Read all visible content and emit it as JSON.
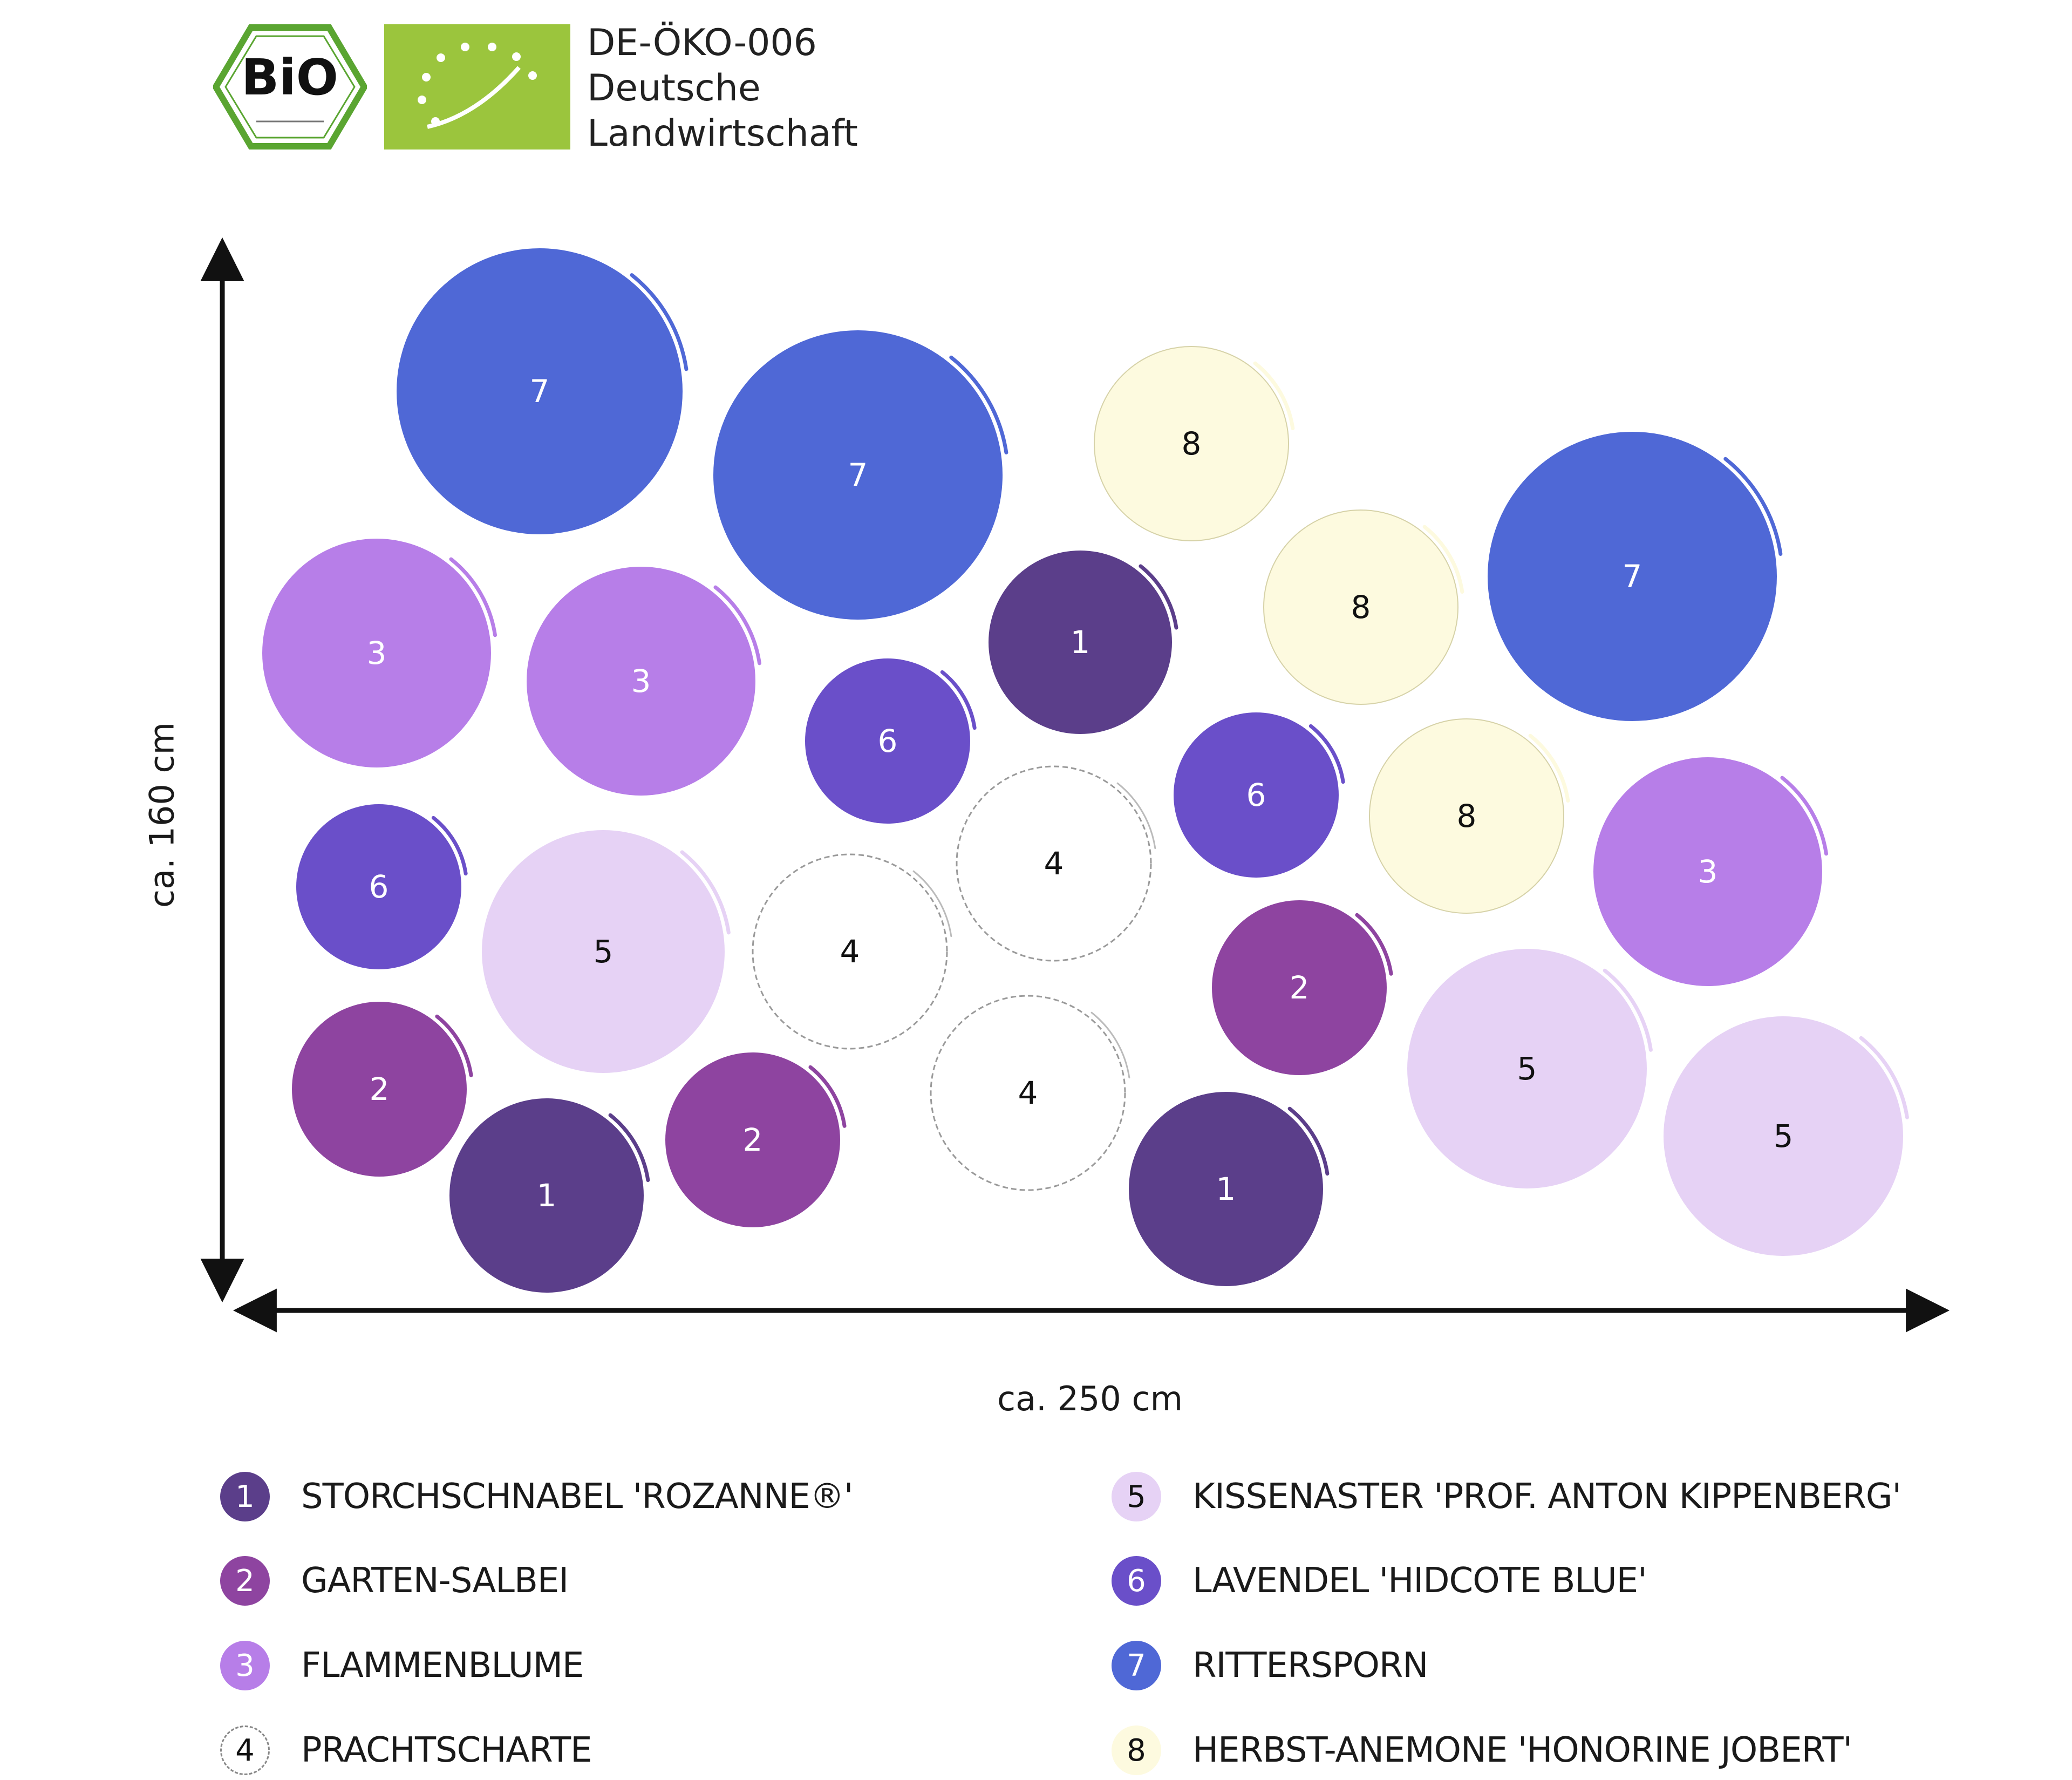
{
  "header": {
    "bio_seal_text": "BiO",
    "cert_line1": "DE-ÖKO-006",
    "cert_line2": "Deutsche",
    "cert_line3": "Landwirtschaft"
  },
  "dimensions": {
    "height_label": "ca. 160 cm",
    "width_label": "ca. 250 cm"
  },
  "plants": [
    {
      "id": "1",
      "name": "STORCHSCHNABEL 'ROZANNE®'",
      "color": "#5b3e8a",
      "text_color": "#ffffff"
    },
    {
      "id": "2",
      "name": "GARTEN-SALBEI",
      "color": "#8e44a0",
      "text_color": "#ffffff"
    },
    {
      "id": "3",
      "name": "FLAMMENBLUME",
      "color": "#b77ee8",
      "text_color": "#ffffff"
    },
    {
      "id": "4",
      "name": "PRACHTSCHARTE",
      "color": "#ffffff",
      "text_color": "#111111"
    },
    {
      "id": "5",
      "name": "KISSENASTER 'PROF. ANTON KIPPENBERG'",
      "color": "#e6d2f5",
      "text_color": "#111111"
    },
    {
      "id": "6",
      "name": "LAVENDEL 'HIDCOTE BLUE'",
      "color": "#6a4fc9",
      "text_color": "#ffffff"
    },
    {
      "id": "7",
      "name": "RITTERSPORN",
      "color": "#4f68d6",
      "text_color": "#ffffff"
    },
    {
      "id": "8",
      "name": "HERBST-ANEMONE 'HONORINE JOBERT'",
      "color": "#fdfadf",
      "text_color": "#111111"
    }
  ]
}
